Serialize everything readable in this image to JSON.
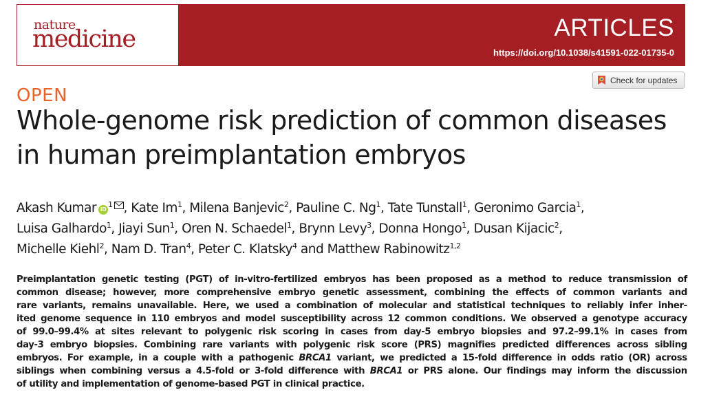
{
  "journal": {
    "name_top": "nature",
    "name_bottom": "medicine",
    "section": "ARTICLES",
    "doi": "https://doi.org/10.1038/s41591-022-01735-0",
    "colors": {
      "brand_red": "#a51e24",
      "open_orange": "#e8622a"
    }
  },
  "updates_button": {
    "label": "Check for updates",
    "icon": "crossmark-icon"
  },
  "open_label": "OPEN",
  "title": "Whole-genome risk prediction of common diseases in human preimplantation embryos",
  "authors": {
    "line1": [
      {
        "name": "Akash Kumar",
        "orcid": true,
        "aff": "1",
        "corresponding": true
      },
      {
        "name": "Kate Im",
        "aff": "1"
      },
      {
        "name": "Milena Banjevic",
        "aff": "2"
      },
      {
        "name": "Pauline C. Ng",
        "aff": "1"
      },
      {
        "name": "Tate Tunstall",
        "aff": "1"
      },
      {
        "name": "Geronimo Garcia",
        "aff": "1"
      }
    ],
    "line2": [
      {
        "name": "Luisa Galhardo",
        "aff": "1"
      },
      {
        "name": "Jiayi Sun",
        "aff": "1"
      },
      {
        "name": "Oren N. Schaedel",
        "aff": "1"
      },
      {
        "name": "Brynn Levy",
        "aff": "3"
      },
      {
        "name": "Donna Hongo",
        "aff": "1"
      },
      {
        "name": "Dusan Kijacic",
        "aff": "2"
      }
    ],
    "line3": [
      {
        "name": "Michelle Kiehl",
        "aff": "2"
      },
      {
        "name": "Nam D. Tran",
        "aff": "4"
      },
      {
        "name": "Peter C. Klatsky",
        "aff": "4"
      },
      {
        "name": "Matthew Rabinowitz",
        "aff": "1,2"
      }
    ]
  },
  "abstract_lines": [
    "Preimplantation genetic testing (PGT) of in-vitro-fertilized embryos has been proposed as a method to reduce transmission of",
    "common disease; however, more comprehensive embryo genetic assessment, combining the effects of common variants and",
    "rare variants, remains unavailable. Here, we used a combination of molecular and statistical techniques to reliably infer inher-",
    "ited genome sequence in 110 embryos and model susceptibility across 12 common conditions. We observed a genotype accuracy",
    "of 99.0–99.4% at sites relevant to polygenic risk scoring in cases from day-5 embryo biopsies and 97.2–99.1% in cases from",
    "day-3 embryo biopsies. Combining rare variants with polygenic risk score (PRS) magnifies predicted differences across sibling",
    "embryos. For example, in a couple with a pathogenic BRCA1 variant, we predicted a 15-fold difference in odds ratio (OR) across",
    "siblings when combining versus a 4.5-fold or 3-fold difference with BRCA1 or PRS alone. Our findings may inform the discussion",
    "of utility and implementation of genome-based PGT in clinical practice."
  ]
}
